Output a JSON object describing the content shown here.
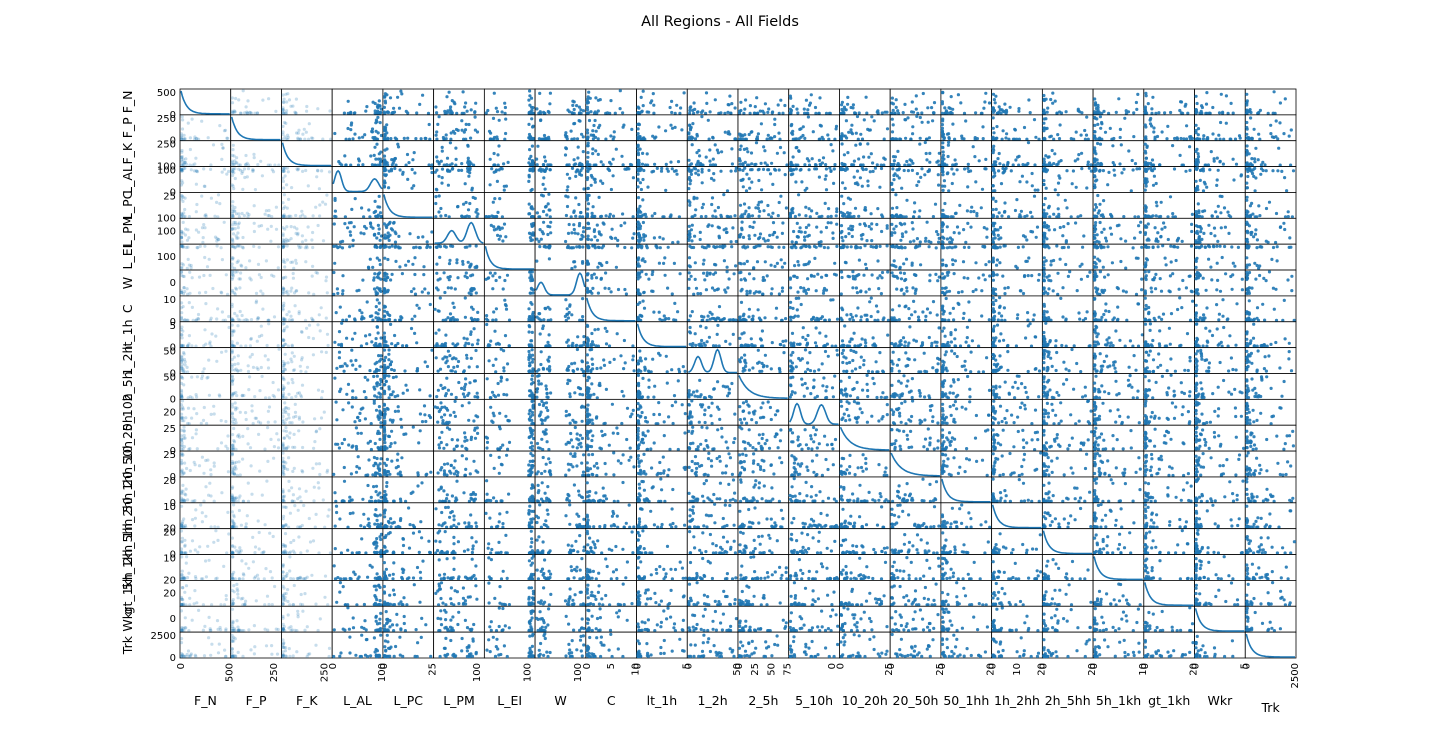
{
  "chart_data": {
    "type": "scatter",
    "title": "All Regions - All Fields",
    "variables": [
      "F_N",
      "F_P",
      "F_K",
      "L_AL",
      "L_PC",
      "L_PM",
      "L_EI",
      "W",
      "C",
      "lt_1h",
      "1_2h",
      "2_5h",
      "5_10h",
      "10_20h",
      "20_50h",
      "50_1hh",
      "1h_2hh",
      "2h_5hh",
      "5h_1kh",
      "gt_1kh",
      "Wkr",
      "Trk"
    ],
    "ranges": {
      "F_N": [
        0,
        500
      ],
      "F_P": [
        0,
        300
      ],
      "F_K": [
        0,
        300
      ],
      "L_AL": [
        0,
        100
      ],
      "L_PC": [
        0,
        30
      ],
      "L_PM": [
        0,
        100
      ],
      "L_EI": [
        0,
        100
      ],
      "W": [
        0,
        100
      ],
      "C": [
        0,
        12
      ],
      "lt_1h": [
        0,
        8
      ],
      "1_2h": [
        0,
        70
      ],
      "2_5h": [
        0,
        70
      ],
      "5_10h": [
        0,
        25
      ],
      "10_20h": [
        0,
        30
      ],
      "20_50h": [
        0,
        30
      ],
      "50_1hh": [
        0,
        22
      ],
      "1h_2hh": [
        0,
        15
      ],
      "2h_5hh": [
        0,
        22
      ],
      "5h_1kh": [
        0,
        15
      ],
      "gt_1kh": [
        0,
        22
      ],
      "Wkr": [
        0,
        6
      ],
      "Trk": [
        0,
        3000
      ]
    },
    "x_tick_labels": [
      [
        "0",
        "500"
      ],
      [
        "250"
      ],
      [
        "250"
      ],
      [
        "0",
        "100"
      ],
      [
        "0",
        "25"
      ],
      [
        "100"
      ],
      [
        "100"
      ],
      [
        "100"
      ],
      [
        "0",
        "5",
        "10"
      ],
      [
        "0",
        "5"
      ],
      [
        "0",
        "50"
      ],
      [
        "0",
        "25",
        "50",
        "75"
      ],
      [
        "0"
      ],
      [
        "0",
        "25"
      ],
      [
        "0",
        "25"
      ],
      [
        "0",
        "20"
      ],
      [
        "0",
        "10",
        "20"
      ],
      [
        "0",
        "20"
      ],
      [
        "0",
        "10"
      ],
      [
        "0",
        "20"
      ],
      [
        "0",
        "5"
      ],
      [
        "0",
        "2500"
      ]
    ],
    "y_tick_labels": [
      [
        "500",
        "0"
      ],
      [
        "250",
        "0"
      ],
      [
        "250",
        "100"
      ],
      [
        "100",
        "0"
      ],
      [
        "25",
        "100"
      ],
      [
        "100"
      ],
      [
        "100"
      ],
      [
        "0"
      ],
      [
        "10",
        "0"
      ],
      [
        "5",
        "0"
      ],
      [
        "50",
        "0"
      ],
      [
        "50",
        "0"
      ],
      [
        "20"
      ],
      [
        "25",
        "0"
      ],
      [
        "25",
        "0"
      ],
      [
        "20",
        "0"
      ],
      [
        "10",
        "20"
      ],
      [
        "20",
        "0"
      ],
      [
        "10",
        "20"
      ],
      [
        "20"
      ],
      [
        "0"
      ],
      [
        "2500",
        "0"
      ]
    ],
    "diagonal": "density",
    "point_color": "#1f77b4",
    "grid": false,
    "legend": "none"
  }
}
